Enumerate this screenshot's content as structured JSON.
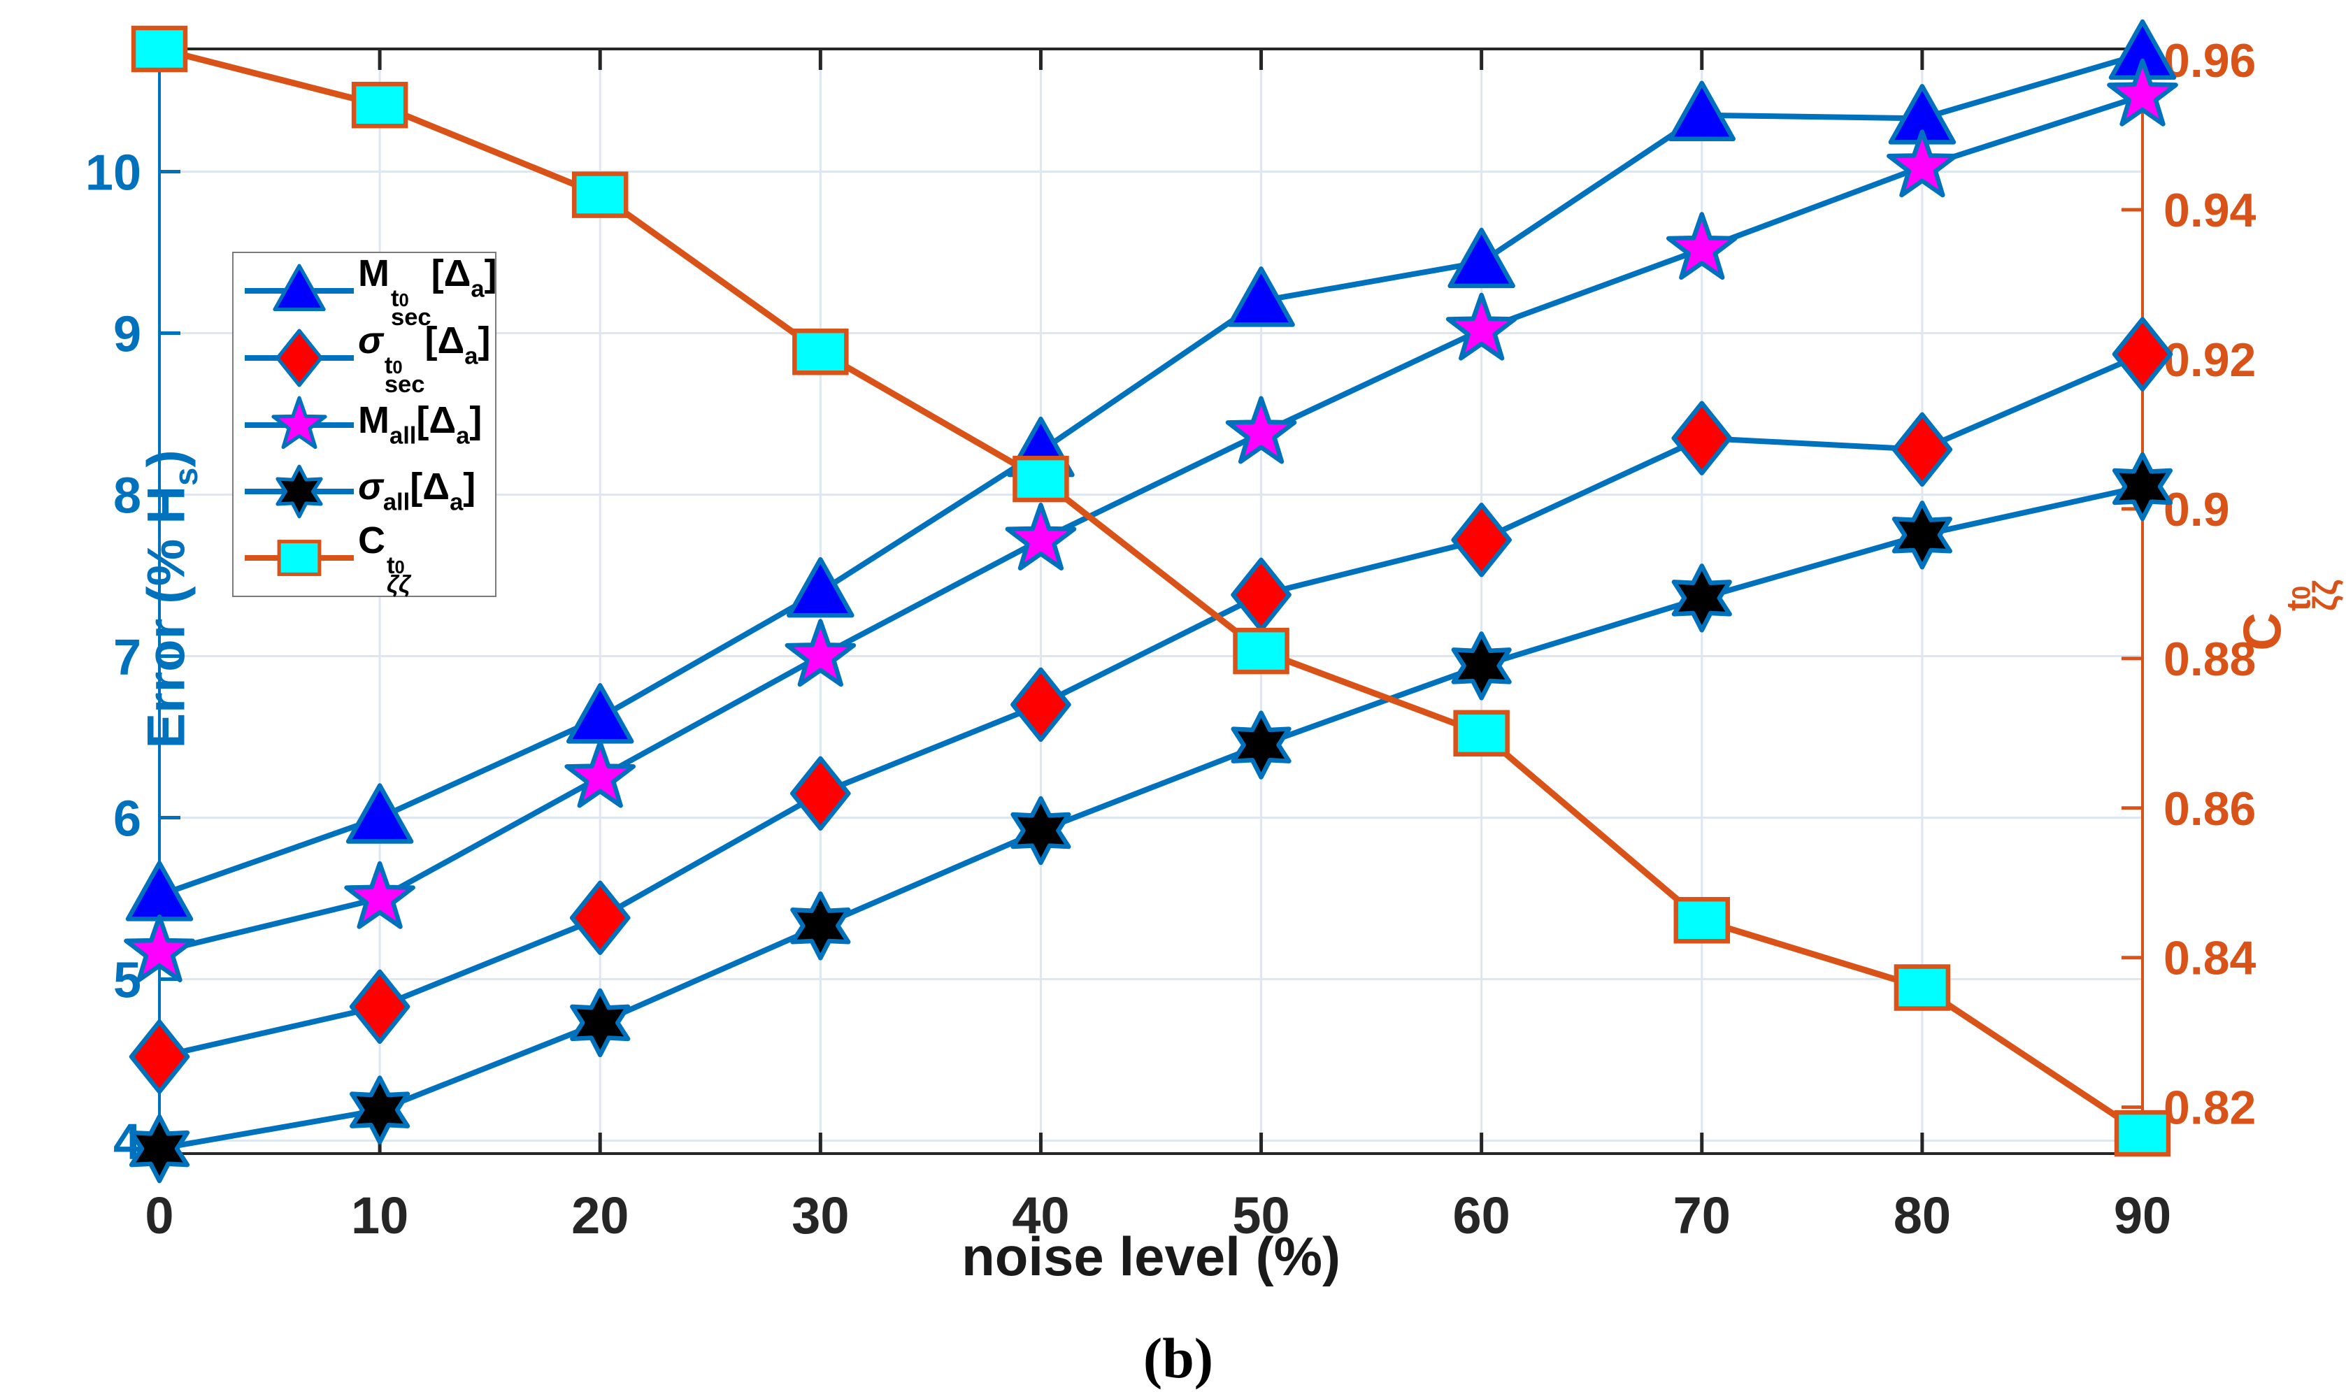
{
  "figure": {
    "caption": "(b)",
    "background": "#ffffff"
  },
  "chart_data": {
    "type": "line",
    "title": "",
    "xlabel": "noise level (%)",
    "xlim": [
      0,
      90
    ],
    "x": [
      0,
      10,
      20,
      30,
      40,
      50,
      60,
      70,
      80,
      90
    ],
    "x_tick_labels": [
      "0",
      "10",
      "20",
      "30",
      "40",
      "50",
      "60",
      "70",
      "80",
      "90"
    ],
    "grid": true,
    "legend_position": "upper-left-inside",
    "frame_color": "#262626",
    "grid_color": "#dde6f1",
    "x_tick_color": "#262626",
    "axes": {
      "left": {
        "label": "Error (% H_s)",
        "label_parts": {
          "pre": "Error (% H",
          "sub": "s",
          "post": ")"
        },
        "color": "#0072BD",
        "ticks": [
          4,
          5,
          6,
          7,
          8,
          9,
          10
        ],
        "tick_labels": [
          "4",
          "5",
          "6",
          "7",
          "8",
          "9",
          "10"
        ],
        "lim": [
          3.92,
          10.76
        ]
      },
      "right": {
        "label": "C^{t_0}_{ζζ}",
        "label_parts": {
          "pre": "C",
          "sup": "t",
          "supsub": "0",
          "sub": "ζζ"
        },
        "color": "#D95319",
        "ticks": [
          0.82,
          0.84,
          0.86,
          0.88,
          0.9,
          0.92,
          0.94,
          0.96
        ],
        "tick_labels": [
          "0.82",
          "0.84",
          "0.86",
          "0.88",
          "0.9",
          "0.92",
          "0.94",
          "0.96"
        ],
        "lim": [
          0.8138,
          0.9615
        ]
      }
    },
    "series": [
      {
        "id": "m-sec",
        "label": "M^{t_0}_{sec}[Δ_a]",
        "label_parts": {
          "pre": "M",
          "sup": "t",
          "supsub": "0",
          "sub": "sec",
          "mid": "[Δ",
          "midsub": "a",
          "post": "]"
        },
        "axis": "left",
        "marker": "triangle",
        "line_color": "#0072BD",
        "marker_fill": "#0000FF",
        "marker_edge": "#0072BD",
        "values": [
          5.52,
          6.0,
          6.62,
          7.4,
          8.27,
          9.2,
          9.44,
          10.35,
          10.33,
          10.73
        ]
      },
      {
        "id": "sigma-sec",
        "label": "σ^{t_0}_{sec}[Δ_a]",
        "label_parts": {
          "pre": "σ",
          "sup": "t",
          "supsub": "0",
          "sub": "sec",
          "mid": "[Δ",
          "midsub": "a",
          "post": "]"
        },
        "axis": "left",
        "marker": "diamond",
        "line_color": "#0072BD",
        "marker_fill": "#FF0000",
        "marker_edge": "#0072BD",
        "values": [
          4.52,
          4.83,
          5.38,
          6.15,
          6.7,
          7.38,
          7.72,
          8.35,
          8.28,
          8.87
        ]
      },
      {
        "id": "m-all",
        "label": "M_all[Δ_a]",
        "label_parts": {
          "pre": "M",
          "sup": "",
          "supsub": "",
          "sub": "all",
          "mid": "[Δ",
          "midsub": "a",
          "post": "]"
        },
        "axis": "left",
        "marker": "star5",
        "line_color": "#0072BD",
        "marker_fill": "#FF00FF",
        "marker_edge": "#0072BD",
        "values": [
          5.17,
          5.5,
          6.25,
          7.0,
          7.72,
          8.38,
          9.02,
          9.52,
          10.03,
          10.47
        ]
      },
      {
        "id": "sigma-all",
        "label": "σ_all[Δ_a]",
        "label_parts": {
          "pre": "σ",
          "sup": "",
          "supsub": "",
          "sub": "all",
          "mid": "[Δ",
          "midsub": "a",
          "post": "]"
        },
        "axis": "left",
        "marker": "star6",
        "line_color": "#0072BD",
        "marker_fill": "#000000",
        "marker_edge": "#0072BD",
        "values": [
          3.95,
          4.19,
          4.73,
          5.33,
          5.92,
          6.45,
          6.94,
          7.36,
          7.75,
          8.05
        ]
      },
      {
        "id": "c-zetazeta",
        "label": "C^{t_0}_{ζζ}",
        "label_parts": {
          "pre": "C",
          "sup": "t",
          "supsub": "0",
          "sub": "ζζ",
          "mid": "",
          "midsub": "",
          "post": ""
        },
        "axis": "right",
        "marker": "square",
        "line_color": "#D95319",
        "marker_fill": "#00FFFF",
        "marker_edge": "#D95319",
        "values": [
          0.9615,
          0.954,
          0.942,
          0.921,
          0.904,
          0.881,
          0.87,
          0.845,
          0.836,
          0.8165
        ]
      }
    ]
  }
}
